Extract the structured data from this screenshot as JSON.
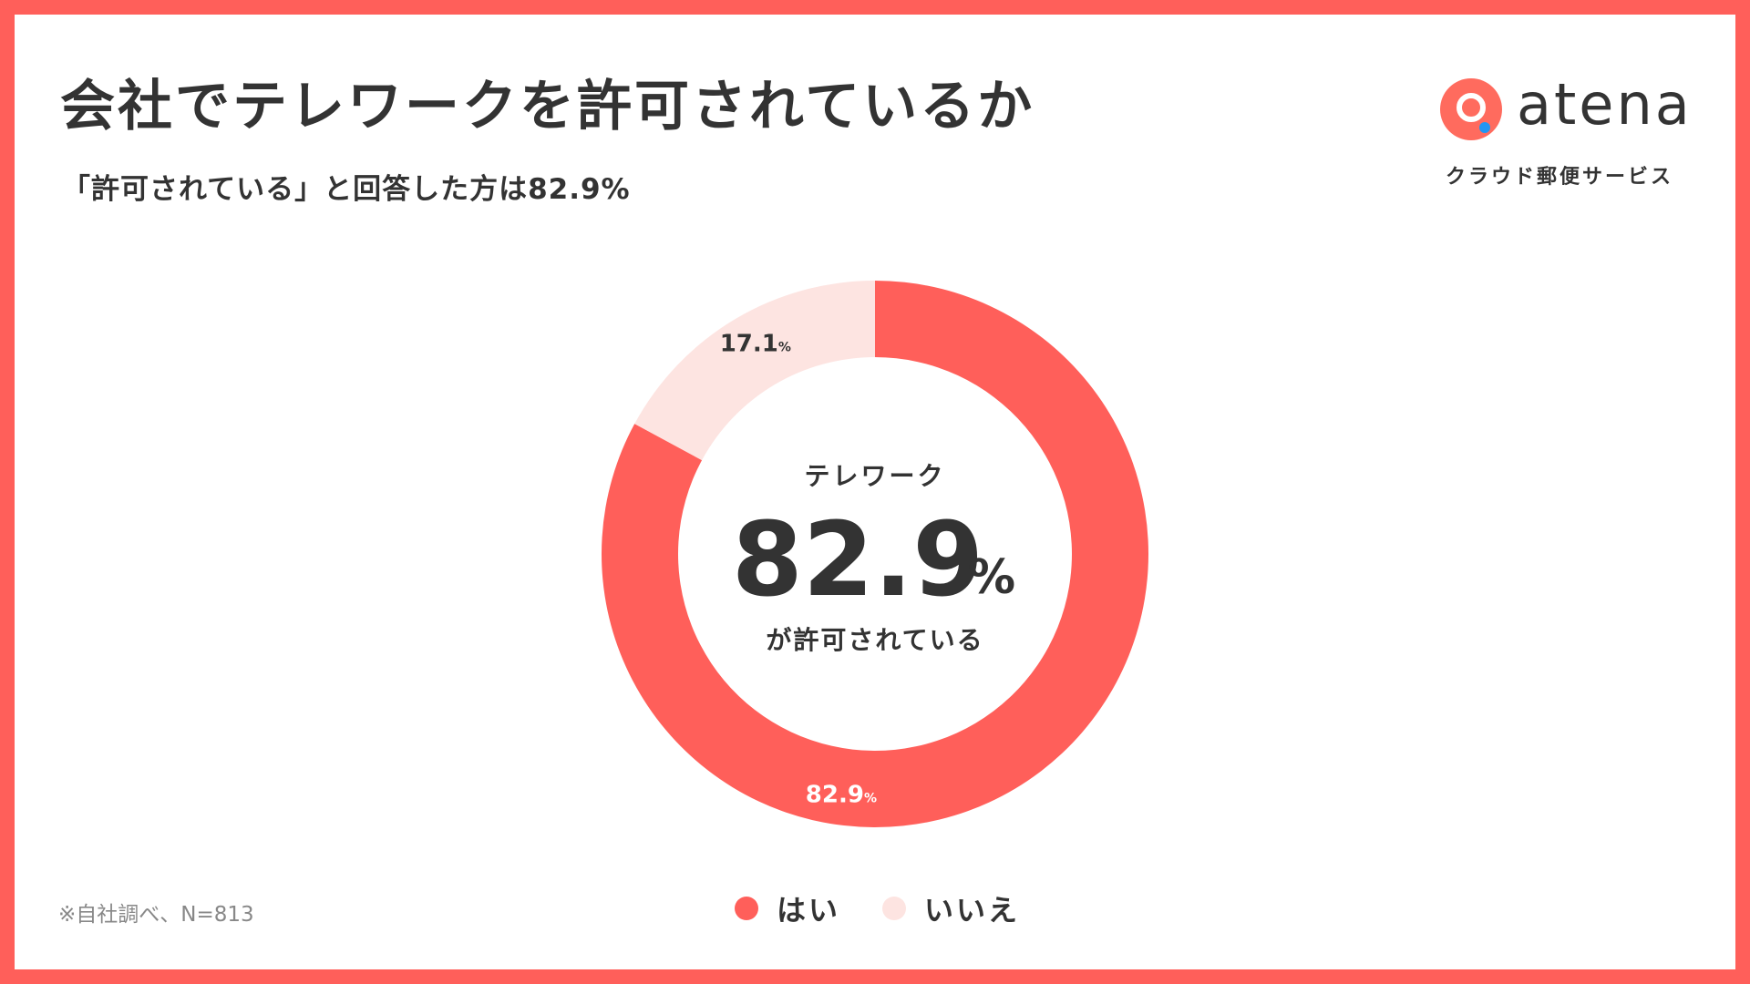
{
  "header": {
    "title": "会社でテレワークを許可されているか",
    "subtitle": "「許可されている」と回答した方は82.9%"
  },
  "brand": {
    "name": "atena",
    "tagline": "クラウド郵便サービス",
    "mark_icon": "atena-logo-icon"
  },
  "center": {
    "top": "テレワーク",
    "value": "82.9",
    "unit": "%",
    "bottom": "が許可されている"
  },
  "footnote": "※自社調べ、N=813",
  "colors": {
    "frame": "#ff5f5a",
    "yes": "#ff5f5a",
    "no": "#fde4e1",
    "text": "#333333"
  },
  "chart_data": {
    "type": "pie",
    "style": "donut",
    "categories": [
      "はい",
      "いいえ"
    ],
    "values": [
      82.9,
      17.1
    ],
    "data_labels": [
      "82.9",
      "17.1"
    ],
    "label_unit": "%",
    "legend_position": "bottom"
  }
}
